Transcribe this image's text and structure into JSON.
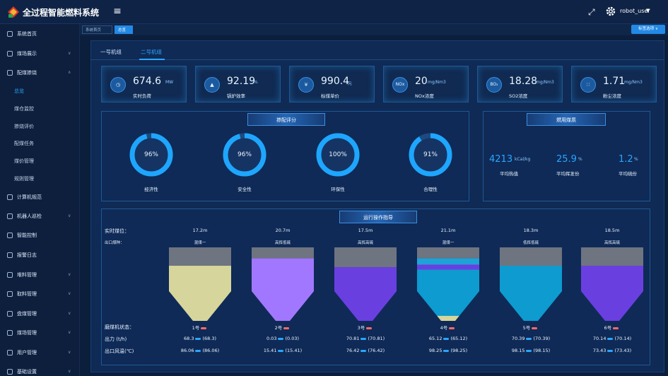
{
  "app": {
    "title": "全过程智能燃料系统",
    "user": "robot_user"
  },
  "sidebar": {
    "items": [
      {
        "label": "系统首页"
      },
      {
        "label": "煤场展示"
      },
      {
        "label": "配煤掺烧"
      },
      {
        "label": "计算机规范"
      },
      {
        "label": "机器人巡检"
      },
      {
        "label": "智能控制"
      },
      {
        "label": "报警日志"
      },
      {
        "label": "堆料管理"
      },
      {
        "label": "取料管理"
      },
      {
        "label": "盘煤管理"
      },
      {
        "label": "煤场管理"
      },
      {
        "label": "用户管理"
      },
      {
        "label": "基础设置"
      }
    ],
    "subitems": [
      {
        "label": "总览"
      },
      {
        "label": "煤仓监控"
      },
      {
        "label": "掺烧评价"
      },
      {
        "label": "配煤任务"
      },
      {
        "label": "煤价管理"
      },
      {
        "label": "规则管理"
      }
    ]
  },
  "tags": {
    "home": "系统首页",
    "active": "总览",
    "ops": "标签选项"
  },
  "tabs": [
    {
      "label": "一号机组"
    },
    {
      "label": "二号机组"
    }
  ],
  "kpis": [
    {
      "value": "674.6",
      "unit": "MW",
      "label": "实时负荷",
      "icon": "clock-icon"
    },
    {
      "value": "92.19",
      "unit": "%",
      "label": "锅炉效率",
      "icon": "boiler-icon"
    },
    {
      "value": "990.4",
      "unit": "元",
      "label": "标煤单价",
      "icon": "money-bag-icon"
    },
    {
      "value": "20",
      "unit": "mg/Nm3",
      "label": "NOx浓度",
      "icon_text": "NOx"
    },
    {
      "value": "18.28",
      "unit": "mg/Nm3",
      "label": "SO2浓度",
      "icon_text": "BO₂"
    },
    {
      "value": "1.71",
      "unit": "mg/Nm3",
      "label": "粉尘浓度",
      "icon": "dust-icon"
    }
  ],
  "score_panel": {
    "title": "掺配评分",
    "gauges": [
      {
        "value": "96%",
        "percent": 96,
        "label": "经济性"
      },
      {
        "value": "96%",
        "percent": 96,
        "label": "安全性"
      },
      {
        "value": "100%",
        "percent": 100,
        "label": "环保性"
      },
      {
        "value": "91%",
        "percent": 91,
        "label": "合理性"
      }
    ]
  },
  "coal_panel": {
    "title": "燃用煤质",
    "items": [
      {
        "value": "4213",
        "unit": "kCal/kg",
        "label": "平均热值"
      },
      {
        "value": "25.9",
        "unit": "%",
        "label": "平均挥发份"
      },
      {
        "value": "1.2",
        "unit": "%",
        "label": "平均硫份"
      }
    ]
  },
  "guide_panel": {
    "title": "运行操作指导",
    "row_labels": {
      "position": "实时煤位：",
      "type": "出口煤种：",
      "status": "磨煤机状态：",
      "output": "出力 (t/h)",
      "wind": "出口风温(℃)"
    },
    "bunkers": [
      {
        "position": "17.2m",
        "type": "混煤一",
        "name": "1号",
        "output": "68.3",
        "output_ref": "(68.3)",
        "wind": "86.06",
        "wind_ref": "(86.06)",
        "empty": 0.25,
        "layers": [
          {
            "frac": 1.0,
            "color": "#d6d59b"
          }
        ]
      },
      {
        "position": "20.7m",
        "type": "高挥低硫",
        "name": "2号",
        "output": "0.03",
        "output_ref": "(0.03)",
        "wind": "15.41",
        "wind_ref": "(15.41)",
        "empty": 0.15,
        "layers": [
          {
            "frac": 1.0,
            "color": "#a277ff"
          }
        ]
      },
      {
        "position": "17.5m",
        "type": "高挥高硫",
        "name": "3号",
        "output": "70.81",
        "output_ref": "(70.81)",
        "wind": "76.42",
        "wind_ref": "(76.42)",
        "empty": 0.27,
        "layers": [
          {
            "frac": 1.0,
            "color": "#6a3fe0"
          }
        ]
      },
      {
        "position": "21.1m",
        "type": "混煤一",
        "name": "4号",
        "output": "65.12",
        "output_ref": "(65.12)",
        "wind": "98.25",
        "wind_ref": "(98.25)",
        "empty": 0.15,
        "layers": [
          {
            "frac": 0.1,
            "color": "#1ea3d8"
          },
          {
            "frac": 0.08,
            "color": "#6a3fe0"
          },
          {
            "frac": 0.74,
            "color": "#0d9bd0"
          },
          {
            "frac": 0.08,
            "color": "#d6d59b"
          }
        ]
      },
      {
        "position": "18.3m",
        "type": "低挥低硫",
        "name": "5号",
        "output": "70.39",
        "output_ref": "(70.39)",
        "wind": "98.15",
        "wind_ref": "(98.15)",
        "empty": 0.25,
        "layers": [
          {
            "frac": 1.0,
            "color": "#0d9bd0"
          }
        ]
      },
      {
        "position": "18.5m",
        "type": "高挥高硫",
        "name": "6号",
        "output": "70.14",
        "output_ref": "(70.14)",
        "wind": "73.43",
        "wind_ref": "(73.43)",
        "empty": 0.25,
        "layers": [
          {
            "frac": 1.0,
            "color": "#6a3fe0"
          }
        ]
      }
    ]
  },
  "colors": {
    "accent": "#2aa6ff",
    "panel": "#0f2a57",
    "background": "#0b1e3c",
    "empty_bunker": "#6e7480",
    "status_red": "#ff6b6b"
  }
}
